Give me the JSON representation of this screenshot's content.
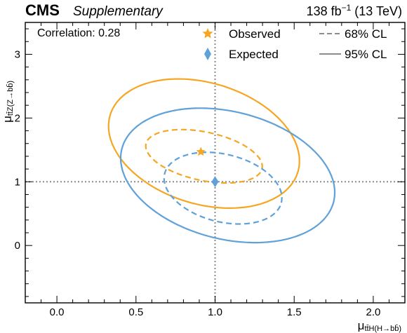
{
  "header": {
    "experiment": "CMS",
    "label": "Supplementary",
    "lumi_prefix": "138 fb",
    "lumi_exponent": "−1",
    "energy": " (13 TeV)"
  },
  "chart_data": {
    "type": "scatter",
    "xlabel_main": "μ",
    "xlabel_sub": "tt̄H(H→bb̄)",
    "ylabel_main": "μ",
    "ylabel_sub": "tt̄Z(Z→bb̄)",
    "xlim": [
      -0.2,
      2.2
    ],
    "ylim": [
      -0.9,
      3.5
    ],
    "x_ticks": [
      0.0,
      0.5,
      1.0,
      1.5,
      2.0
    ],
    "x_tick_labels": [
      "0.0",
      "0.5",
      "1.0",
      "1.5",
      "2.0"
    ],
    "y_ticks": [
      0,
      1,
      2,
      3
    ],
    "y_tick_labels": [
      "0",
      "1",
      "2",
      "3"
    ],
    "annotation": "Correlation: 0.28",
    "legend": {
      "observed": "Observed",
      "expected": "Expected",
      "cl68": "68% CL",
      "cl95": "95% CL"
    },
    "colors": {
      "observed": "#f5a623",
      "expected": "#5fa1d8",
      "reference": "#8c8c8c"
    },
    "reference_lines": {
      "x": 1.0,
      "y": 1.0
    },
    "points": [
      {
        "series": "Observed",
        "x": 0.91,
        "y": 1.47,
        "marker": "star"
      },
      {
        "series": "Expected",
        "x": 1.0,
        "y": 1.0,
        "marker": "diamond"
      }
    ],
    "contours": [
      {
        "series": "Observed",
        "cl": "68%",
        "style": "dashed",
        "center": [
          0.93,
          1.4
        ],
        "rx": 0.375,
        "ry": 0.38,
        "angle_deg": -12
      },
      {
        "series": "Observed",
        "cl": "95%",
        "style": "solid",
        "center": [
          0.93,
          1.6
        ],
        "rx": 0.62,
        "ry": 0.95,
        "angle_deg": -17
      },
      {
        "series": "Expected",
        "cl": "68%",
        "style": "dashed",
        "center": [
          1.05,
          0.9
        ],
        "rx": 0.38,
        "ry": 0.53,
        "angle_deg": -14
      },
      {
        "series": "Expected",
        "cl": "95%",
        "style": "solid",
        "center": [
          1.08,
          1.1
        ],
        "rx": 0.69,
        "ry": 1.0,
        "angle_deg": -14
      }
    ]
  }
}
